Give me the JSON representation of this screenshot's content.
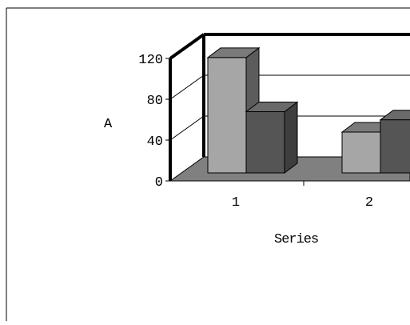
{
  "chart_data": {
    "type": "bar",
    "title": "",
    "xlabel": "Series",
    "ylabel": "A",
    "categories": [
      "1",
      "2"
    ],
    "series": [
      {
        "values": [
          113,
          40
        ]
      },
      {
        "values": [
          60,
          52
        ]
      }
    ],
    "ylim": [
      0,
      120
    ],
    "yticks": [
      "0",
      "40",
      "80",
      "120"
    ],
    "grid": true,
    "three_d": true,
    "colors": {
      "series1_front": "#a6a6a6",
      "series1_top": "#7a7a7a",
      "series1_side": "#5c5c5c",
      "series2_front": "#555555",
      "series2_top": "#6a6a6a",
      "series2_side": "#3e3e3e",
      "floor": "#808080",
      "axis": "#000000"
    }
  }
}
